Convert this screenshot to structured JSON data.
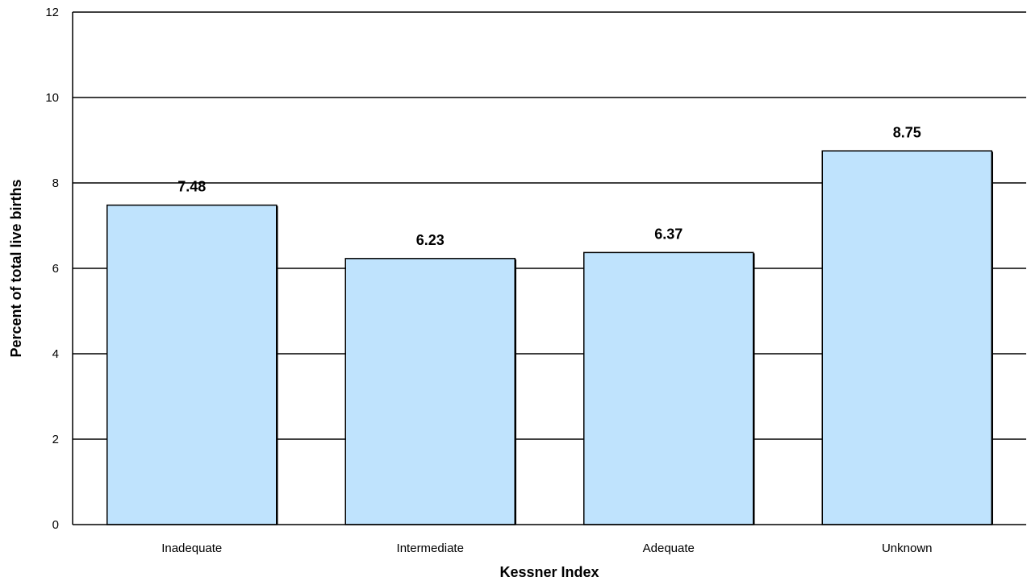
{
  "chart_data": {
    "type": "bar",
    "title": "",
    "xlabel": "Kessner Index",
    "ylabel": "Percent of total live births",
    "categories": [
      "Inadequate",
      "Intermediate",
      "Adequate",
      "Unknown"
    ],
    "values": [
      7.48,
      6.23,
      6.37,
      8.75
    ],
    "value_labels": [
      "7.48",
      "6.23",
      "6.37",
      "8.75"
    ],
    "ylim": [
      0,
      12
    ],
    "yticks": [
      0,
      2,
      4,
      6,
      8,
      10,
      12
    ],
    "grid": true,
    "legend": "none",
    "bar_color": "#bfe3fd",
    "bar_edge_color": "#000000"
  }
}
